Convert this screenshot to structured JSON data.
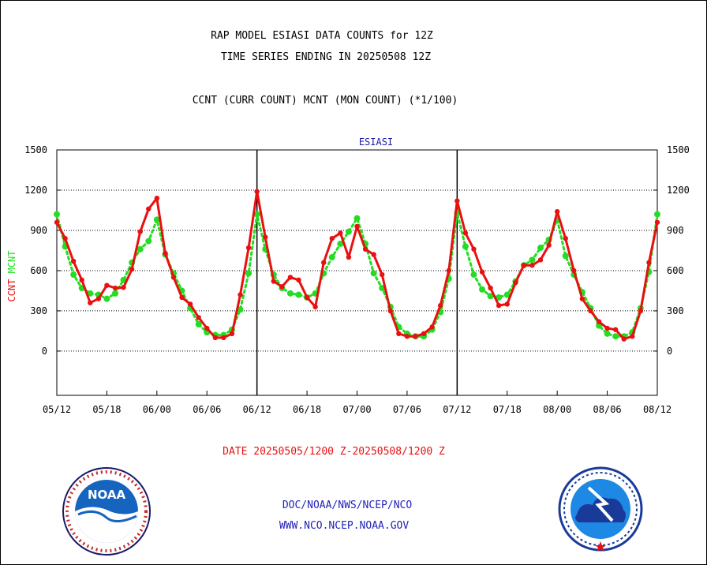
{
  "header": {
    "title_line1": "RAP MODEL ESIASI DATA COUNTS for 12Z",
    "title_line2": "TIME SERIES ENDING IN 20250508 12Z",
    "subtitle": "CCNT (CURR COUNT) MCNT (MON COUNT) (*1/100)"
  },
  "colors": {
    "ccnt": "#e81010",
    "mcnt": "#22dd22",
    "panel_label": "#1a1aaa",
    "footer_link": "#2222bb",
    "date_text": "#e81010"
  },
  "footer": {
    "date_range": "DATE 20250505/1200 Z-20250508/1200 Z",
    "org_line": "DOC/NOAA/NWS/NCEP/NCO",
    "url_line": "WWW.NCO.NCEP.NOAA.GOV",
    "left_logo": "noaa-logo",
    "right_logo": "nws-logo"
  },
  "chart_data": {
    "type": "line",
    "title": "ESIASI",
    "ylabel_parts": [
      "CCNT",
      "MCNT"
    ],
    "ylim": [
      -330,
      1500
    ],
    "yticks": [
      0,
      300,
      600,
      900,
      1200,
      1500
    ],
    "xlim": [
      0,
      72
    ],
    "xticks": [
      0,
      6,
      12,
      18,
      24,
      30,
      36,
      42,
      48,
      54,
      60,
      66,
      72
    ],
    "xtick_labels": [
      "05/12",
      "05/18",
      "06/00",
      "06/06",
      "06/12",
      "06/18",
      "07/00",
      "07/06",
      "07/12",
      "07/18",
      "08/00",
      "08/06",
      "08/12"
    ],
    "day_separators": [
      24,
      48
    ],
    "grid": true,
    "series": [
      {
        "name": "CCNT",
        "style": "solid",
        "x": [
          0,
          1,
          2,
          3,
          4,
          5,
          6,
          7,
          8,
          9,
          10,
          11,
          12,
          13,
          14,
          15,
          16,
          17,
          18,
          19,
          20,
          21,
          22,
          23,
          24,
          25,
          26,
          27,
          28,
          29,
          30,
          31,
          32,
          33,
          34,
          35,
          36,
          37,
          38,
          39,
          40,
          41,
          42,
          43,
          44,
          45,
          46,
          47,
          48,
          49,
          50,
          51,
          52,
          53,
          54,
          55,
          56,
          57,
          58,
          59,
          60,
          61,
          62,
          63,
          64,
          65,
          66,
          67,
          68,
          69,
          70,
          71,
          72
        ],
        "values": [
          960,
          840,
          670,
          530,
          360,
          390,
          490,
          470,
          475,
          610,
          890,
          1060,
          1140,
          730,
          550,
          400,
          350,
          250,
          170,
          100,
          100,
          130,
          420,
          770,
          1190,
          850,
          520,
          480,
          550,
          530,
          400,
          330,
          660,
          840,
          880,
          700,
          930,
          760,
          720,
          570,
          300,
          130,
          110,
          110,
          130,
          180,
          340,
          600,
          1120,
          880,
          760,
          590,
          470,
          340,
          350,
          510,
          640,
          640,
          680,
          790,
          1040,
          840,
          600,
          390,
          300,
          220,
          170,
          160,
          90,
          110,
          300,
          660,
          960
        ]
      },
      {
        "name": "MCNT",
        "style": "dotted",
        "x": [
          0,
          1,
          2,
          3,
          4,
          5,
          6,
          7,
          8,
          9,
          10,
          11,
          12,
          13,
          14,
          15,
          16,
          17,
          18,
          19,
          20,
          21,
          22,
          23,
          24,
          25,
          26,
          27,
          28,
          29,
          30,
          31,
          32,
          33,
          34,
          35,
          36,
          37,
          38,
          39,
          40,
          41,
          42,
          43,
          44,
          45,
          46,
          47,
          48,
          49,
          50,
          51,
          52,
          53,
          54,
          55,
          56,
          57,
          58,
          59,
          60,
          61,
          62,
          63,
          64,
          65,
          66,
          67,
          68,
          69,
          70,
          71,
          72
        ],
        "values": [
          1020,
          780,
          570,
          470,
          430,
          420,
          390,
          430,
          530,
          660,
          760,
          820,
          980,
          720,
          580,
          450,
          320,
          200,
          140,
          120,
          120,
          160,
          310,
          580,
          1020,
          760,
          570,
          470,
          430,
          420,
          400,
          430,
          580,
          700,
          800,
          890,
          990,
          800,
          580,
          470,
          330,
          180,
          130,
          110,
          110,
          160,
          290,
          540,
          1030,
          780,
          570,
          460,
          410,
          400,
          420,
          520,
          640,
          680,
          770,
          830,
          980,
          710,
          570,
          440,
          320,
          190,
          130,
          110,
          110,
          140,
          320,
          590,
          1020
        ]
      }
    ]
  }
}
